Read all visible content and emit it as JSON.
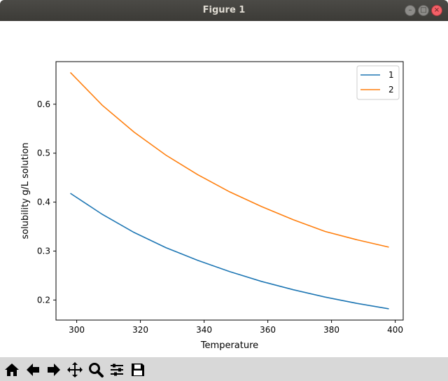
{
  "window": {
    "title": "Figure 1",
    "close_glyph": "×",
    "minimize_glyph": "–",
    "maximize_glyph": "□"
  },
  "toolbar": {
    "buttons": [
      "home-icon",
      "back-arrow-icon",
      "forward-arrow-icon",
      "pan-icon",
      "zoom-icon",
      "configure-subplots-icon",
      "save-icon"
    ]
  },
  "chart_data": {
    "type": "line",
    "title": "",
    "xlabel": "Temperature",
    "ylabel": "solubility g/L solution",
    "xlim": [
      293.5,
      402.5
    ],
    "ylim": [
      0.159,
      0.687
    ],
    "xticks": [
      300,
      320,
      340,
      360,
      380,
      400
    ],
    "xtick_labels": [
      "300",
      "320",
      "340",
      "360",
      "380",
      "400"
    ],
    "yticks": [
      0.2,
      0.3,
      0.4,
      0.5,
      0.6
    ],
    "ytick_labels": [
      "0.2",
      "0.3",
      "0.4",
      "0.5",
      "0.6"
    ],
    "grid": false,
    "legend_position": "top-right",
    "x": [
      298,
      308,
      318,
      328,
      338,
      348,
      358,
      368,
      378,
      388,
      398
    ],
    "series": [
      {
        "name": "1",
        "color": "#1f77b4",
        "values": [
          0.418,
          0.375,
          0.338,
          0.307,
          0.281,
          0.258,
          0.238,
          0.221,
          0.206,
          0.193,
          0.182
        ]
      },
      {
        "name": "2",
        "color": "#ff7f0e",
        "values": [
          0.665,
          0.598,
          0.543,
          0.496,
          0.456,
          0.421,
          0.391,
          0.364,
          0.34,
          0.323,
          0.308
        ]
      }
    ]
  }
}
